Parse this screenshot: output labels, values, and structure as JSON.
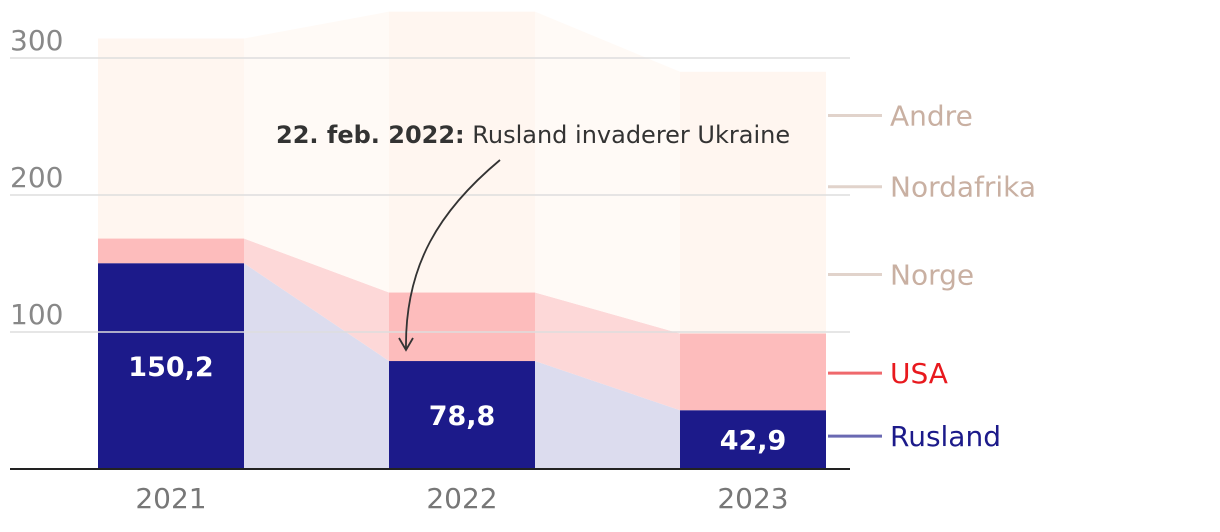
{
  "chart_data": {
    "type": "bar",
    "stacked": true,
    "categories": [
      "2021",
      "2022",
      "2023"
    ],
    "series": [
      {
        "name": "Rusland",
        "values": [
          150.2,
          78.8,
          42.9
        ],
        "color": "#1c1a8a",
        "band_color": "#dcdcee",
        "label_color": "#1c1a8a"
      },
      {
        "name": "USA",
        "values": [
          18,
          50,
          56
        ],
        "color": "#fdbcbc",
        "band_color": "#fdd8d8",
        "label_color": "#e8191e"
      },
      {
        "name": "Norge",
        "values": [
          0,
          0,
          0
        ],
        "color": "#fff6f0",
        "band_color": "#fff6f0",
        "label_color": "#c9b0a2"
      },
      {
        "name": "Nordafrika",
        "values": [
          0,
          0,
          0
        ],
        "color": "#fff6f0",
        "band_color": "#fff6f0",
        "label_color": "#c9b0a2"
      },
      {
        "name": "Andre",
        "values": [
          146,
          205,
          191
        ],
        "color": "#fff6f0",
        "band_color": "#fffaf6",
        "label_color": "#c9b0a2"
      }
    ],
    "data_labels": [
      "150,2",
      "78,8",
      "42,9"
    ],
    "y_ticks": [
      {
        "value": 100,
        "label": "100"
      },
      {
        "value": 200,
        "label": "200"
      },
      {
        "value": 300,
        "label": "300"
      }
    ],
    "ylim": [
      0,
      335
    ],
    "legend_placement": "right",
    "legend_anchor_values": [
      24,
      70,
      142,
      206,
      258
    ],
    "annotation": {
      "bold": "22. feb. 2022:",
      "text": " Rusland invaderer Ukraine",
      "target_category": "2022"
    },
    "grid": true
  }
}
